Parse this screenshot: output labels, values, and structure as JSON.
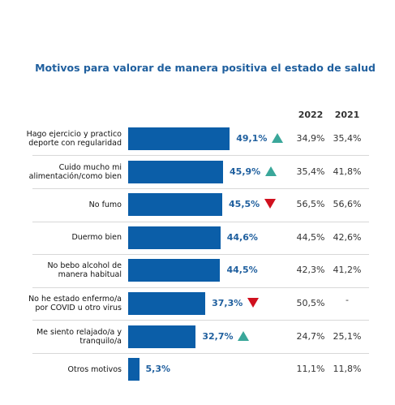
{
  "chart_data": {
    "type": "bar",
    "title": "Motivos para valorar de manera positiva el estado de salud",
    "categories": [
      "Hago ejercicio y practico deporte con regularidad",
      "Cuido mucho mi alimentación/como bien",
      "No fumo",
      "Duermo bien",
      "No bebo alcohol de manera habitual",
      "No he estado enfermo/a por COVID u otro virus",
      "Me siento relajado/a y tranquilo/a",
      "Otros motivos"
    ],
    "values": [
      49.1,
      45.9,
      45.5,
      44.6,
      44.5,
      37.3,
      32.7,
      5.3
    ],
    "value_labels": [
      "49,1%",
      "45,9%",
      "45,5%",
      "44,6%",
      "44,5%",
      "37,3%",
      "32,7%",
      "5,3%"
    ],
    "trend": [
      "up",
      "up",
      "down",
      null,
      null,
      "down",
      "up",
      null
    ],
    "color": "#0b5ea8",
    "trend_colors": {
      "up": "#3aa79a",
      "down": "#d0101e"
    },
    "comparison": [
      {
        "name": "2022",
        "values": [
          34.9,
          35.4,
          56.5,
          44.5,
          42.3,
          50.5,
          24.7,
          11.1
        ],
        "value_labels": [
          "34,9%",
          "35,4%",
          "56,5%",
          "44,5%",
          "42,3%",
          "50,5%",
          "24,7%",
          "11,1%"
        ]
      },
      {
        "name": "2021",
        "values": [
          35.4,
          41.8,
          56.6,
          42.6,
          41.2,
          null,
          25.1,
          11.8
        ],
        "value_labels": [
          "35,4%",
          "41,8%",
          "56,6%",
          "42,6%",
          "41,2%",
          "-",
          "25,1%",
          "11,8%"
        ]
      }
    ]
  }
}
